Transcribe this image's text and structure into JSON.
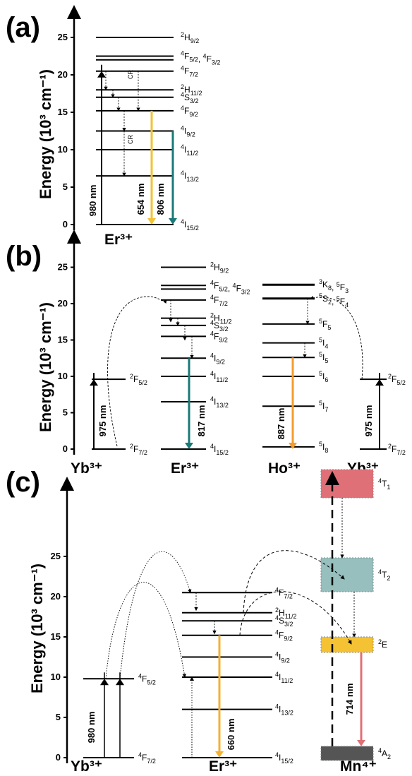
{
  "ytitle": "Energy (10³ cm⁻¹)",
  "ticks": [
    "0",
    "5",
    "10",
    "15",
    "20",
    "25"
  ],
  "panel_a": {
    "label": "(a)",
    "ion": "Er³⁺",
    "levels": [
      {
        "e": 25.0,
        "sym": "2H",
        "sub": "9/2"
      },
      {
        "e": 22.5,
        "sym": "4F",
        "sub": "5/2",
        "sym2": "4F",
        "sub2": "3/2"
      },
      {
        "e": 22.0,
        "sym": "",
        "sub": ""
      },
      {
        "e": 20.5,
        "sym": "4F",
        "sub": "7/2"
      },
      {
        "e": 18.0,
        "sym": "2H",
        "sub": "11/2"
      },
      {
        "e": 17.0,
        "sym": "4S",
        "sub": "3/2"
      },
      {
        "e": 15.2,
        "sym": "4F",
        "sub": "9/2"
      },
      {
        "e": 12.5,
        "sym": "4I",
        "sub": "9/2"
      },
      {
        "e": 10.0,
        "sym": "4I",
        "sub": "11/2"
      },
      {
        "e": 6.5,
        "sym": "4I",
        "sub": "13/2"
      },
      {
        "e": 0.0,
        "sym": "4I",
        "sub": "15/2"
      }
    ],
    "excitation": "980 nm",
    "emissions": [
      {
        "nm": "654 nm",
        "color": "#f5c233",
        "from": 15.2
      },
      {
        "nm": "806 nm",
        "color": "#1a7a78",
        "from": 12.5
      }
    ],
    "cr": "CR"
  },
  "panel_b": {
    "label": "(b)",
    "ions": [
      "Yb³⁺",
      "Er³⁺",
      "Ho³⁺",
      "Yb³⁺"
    ],
    "yb_levels": [
      {
        "e": 9.6,
        "sym": "2F",
        "sub": "5/2"
      },
      {
        "e": 0.0,
        "sym": "2F",
        "sub": "7/2"
      }
    ],
    "er_levels": [
      {
        "e": 25.0,
        "sym": "2H",
        "sub": "9/2"
      },
      {
        "e": 22.5,
        "sym": "4F",
        "sub": "5/2",
        "sym2": "4F",
        "sub2": "3/2"
      },
      {
        "e": 22.0,
        "sym": "",
        "sub": ""
      },
      {
        "e": 20.5,
        "sym": "4F",
        "sub": "7/2"
      },
      {
        "e": 18.0,
        "sym": "2H",
        "sub": "11/2"
      },
      {
        "e": 17.0,
        "sym": "4S",
        "sub": "3/2"
      },
      {
        "e": 15.5,
        "sym": "4F",
        "sub": "9/2"
      },
      {
        "e": 12.5,
        "sym": "4I",
        "sub": "9/2"
      },
      {
        "e": 10.0,
        "sym": "4I",
        "sub": "11/2"
      },
      {
        "e": 6.5,
        "sym": "4I",
        "sub": "13/2"
      },
      {
        "e": 0.0,
        "sym": "4I",
        "sub": "15/2"
      }
    ],
    "ho_levels": [
      {
        "e": 22.6,
        "sym": "3K",
        "sub": "8",
        "sym2": "5F",
        "sub2": "3"
      },
      {
        "e": 20.7,
        "sym": "5S",
        "sub": "2",
        "sym2": "5F",
        "sub2": "4"
      },
      {
        "e": 17.2,
        "sym": "5F",
        "sub": "5"
      },
      {
        "e": 14.6,
        "sym": "5I",
        "sub": "4"
      },
      {
        "e": 12.6,
        "sym": "5I",
        "sub": "5"
      },
      {
        "e": 10.0,
        "sym": "5I",
        "sub": "6"
      },
      {
        "e": 5.9,
        "sym": "5I",
        "sub": "7"
      },
      {
        "e": 0.3,
        "sym": "5I",
        "sub": "8"
      }
    ],
    "excitation": "975 nm",
    "emissions": [
      {
        "nm": "817 nm",
        "color": "#1a7a78"
      },
      {
        "nm": "887 nm",
        "color": "#f39c2e"
      }
    ]
  },
  "panel_c": {
    "label": "(c)",
    "ions": [
      "Yb³⁺",
      "Er³⁺",
      "Mn⁴⁺"
    ],
    "yb_levels": [
      {
        "e": 9.8,
        "sym": "4F",
        "sub": "5/2"
      },
      {
        "e": 0.0,
        "sym": "4F",
        "sub": "7/2"
      }
    ],
    "er_levels": [
      {
        "e": 20.5,
        "sym": "4F",
        "sub": "7/2"
      },
      {
        "e": 18.0,
        "sym": "2H",
        "sub": "11/2"
      },
      {
        "e": 17.0,
        "sym": "4S",
        "sub": "3/2"
      },
      {
        "e": 15.2,
        "sym": "4F",
        "sub": "9/2"
      },
      {
        "e": 12.5,
        "sym": "4I",
        "sub": "9/2"
      },
      {
        "e": 10.0,
        "sym": "4I",
        "sub": "11/2"
      },
      {
        "e": 6.0,
        "sym": "4I",
        "sub": "13/2"
      },
      {
        "e": 0.0,
        "sym": "4I",
        "sub": "15/2"
      }
    ],
    "mn_states": [
      {
        "name": "4T",
        "sub": "1",
        "color": "#e07077",
        "e": 28.5
      },
      {
        "name": "4T",
        "sub": "2",
        "color": "#96bfbd",
        "e": 19.5
      },
      {
        "name": "2E",
        "sub": "",
        "color": "#f5c233",
        "e": 14.0
      },
      {
        "name": "4A",
        "sub": "2",
        "color": "#555555",
        "e": 0.5
      }
    ],
    "excitation": "980 nm",
    "emissions": [
      {
        "nm": "660 nm",
        "color": "#f5b133"
      },
      {
        "nm": "714 nm",
        "color": "#e07077"
      }
    ]
  }
}
